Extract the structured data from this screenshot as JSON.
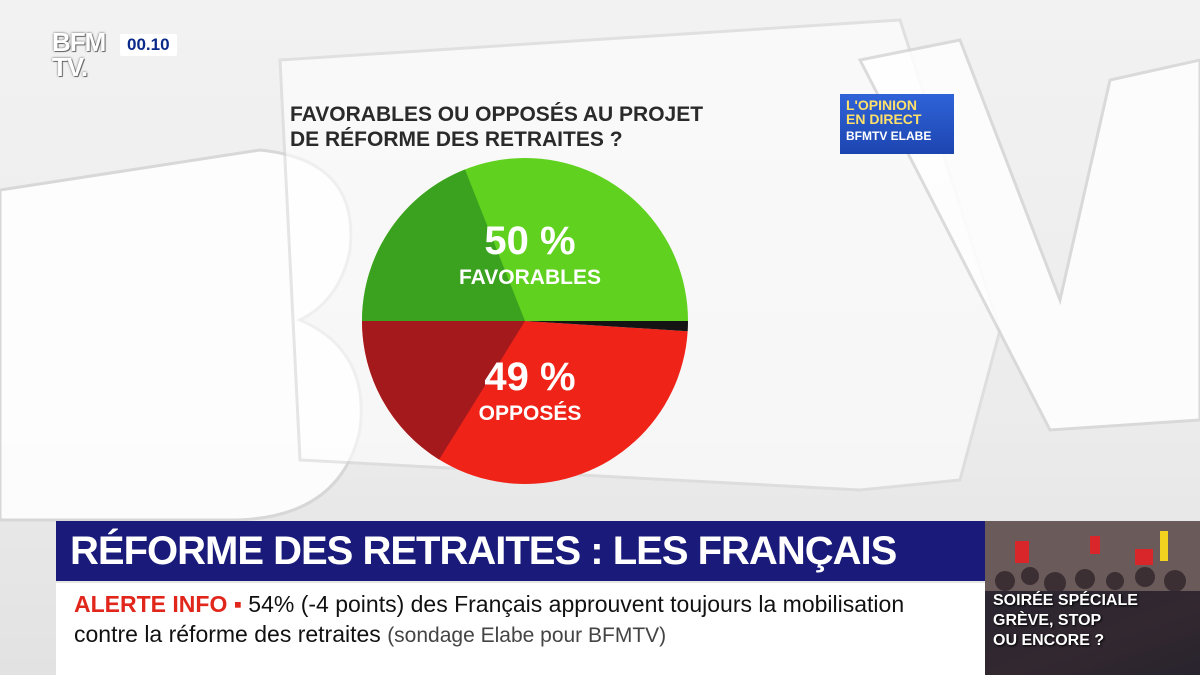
{
  "channel": {
    "logo_line1": "BFM",
    "logo_line2": "TV.",
    "clock": "00.10"
  },
  "chart_data": {
    "type": "pie",
    "title": "FAVORABLES OU OPPOSÉS AU PROJET DE RÉFORME DES RETRAITES ?",
    "title_lines": [
      "FAVORABLES OU OPPOSÉS AU PROJET",
      "DE RÉFORME DES RETRAITES ?"
    ],
    "slices": [
      {
        "label": "FAVORABLES",
        "value": 50,
        "value_label": "50 %",
        "color": "#5fd11e",
        "shade": "#3aa21e"
      },
      {
        "label": "OPPOSÉS",
        "value": 49,
        "value_label": "49 %",
        "color": "#ef2318",
        "shade": "#a4191c"
      },
      {
        "label": "",
        "value": 1,
        "value_label": "",
        "color": "#141414",
        "shade": "#141414"
      }
    ]
  },
  "badge": {
    "line1": "L'OPINION",
    "line2": "EN DIRECT",
    "line3": "BFMTV ELABE"
  },
  "banner": {
    "headline": "RÉFORME DES RETRAITES : LES FRANÇAIS PARTAGÉS"
  },
  "ticker": {
    "alert_label": "ALERTE INFO",
    "alert_bullet": "▪",
    "text": "54% (-4 points) des Français approuvent toujours la mobilisation contre la réforme des retraites",
    "source": "(sondage Elabe pour BFMTV)"
  },
  "promo": {
    "line1": "SOIRÉE SPÉCIALE",
    "line2": "GRÈVE, STOP",
    "line3": "OU ENCORE ?"
  }
}
